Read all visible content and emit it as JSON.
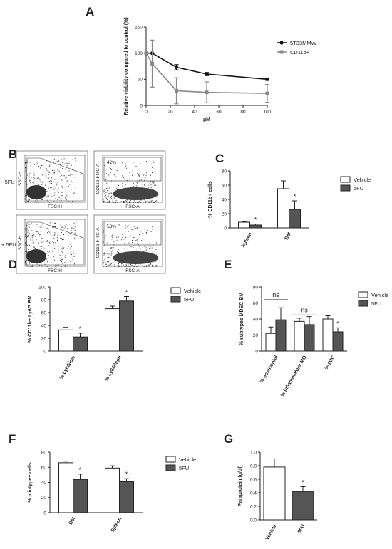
{
  "figure": {
    "background": "#ffffff",
    "axis_color": "#222222",
    "open_bar_color": "#ffffff",
    "dark_bar_color": "#555555"
  },
  "chart_data": [
    {
      "panel": "A",
      "type": "line",
      "ylabel": "Relative viability compared to control (%)",
      "xlabel": "µM",
      "xlim": [
        0,
        100
      ],
      "ylim": [
        0,
        150
      ],
      "xticks": [
        "0",
        "20",
        "40",
        "60",
        "80",
        "100"
      ],
      "yticks": [
        "0",
        "50",
        "100",
        "150"
      ],
      "legend_position": "top-right",
      "series": [
        {
          "name": "5T33MMvv",
          "color": "#111111",
          "marker": "circle",
          "x": [
            0,
            5,
            25,
            50,
            100
          ],
          "y": [
            100,
            100,
            73,
            60,
            50
          ],
          "err": [
            0,
            0,
            5,
            3,
            2
          ]
        },
        {
          "name": "CD11b+",
          "color": "#888888",
          "marker": "square",
          "x": [
            0,
            5,
            25,
            50,
            100
          ],
          "y": [
            100,
            80,
            28,
            25,
            23
          ],
          "err": [
            0,
            45,
            25,
            20,
            17
          ]
        }
      ]
    },
    {
      "panel": "C",
      "type": "bar",
      "ylabel": "% CD11b+ cells",
      "categories": [
        "Spleen",
        "BM"
      ],
      "ylim": [
        0,
        80
      ],
      "yticks": [
        "0",
        "20",
        "40",
        "60",
        "80"
      ],
      "legend_position": "top-right",
      "series": [
        {
          "name": "Vehicle",
          "values": [
            8,
            55
          ],
          "err": [
            1,
            11
          ]
        },
        {
          "name": "5FU",
          "values": [
            4,
            26
          ],
          "err": [
            1.5,
            12
          ]
        }
      ],
      "significance": [
        [
          "",
          ""
        ],
        [
          "*",
          "*"
        ]
      ]
    },
    {
      "panel": "D",
      "type": "bar",
      "ylabel": "% CD11b+ Ly6G BM",
      "categories": [
        "% Ly6Glow",
        "% Ly6Ghigh"
      ],
      "ylim": [
        0,
        100
      ],
      "yticks": [
        "0",
        "20",
        "40",
        "60",
        "80",
        "100"
      ],
      "legend_position": "top-right",
      "series": [
        {
          "name": "Vehicle",
          "values": [
            33,
            66
          ],
          "err": [
            4,
            4
          ]
        },
        {
          "name": "5FU",
          "values": [
            22,
            78
          ],
          "err": [
            6,
            7
          ]
        }
      ],
      "significance": [
        [
          "",
          ""
        ],
        [
          "*",
          "*"
        ]
      ]
    },
    {
      "panel": "E",
      "type": "bar",
      "ylabel": "% subtypes MDSC BM",
      "categories": [
        "% eosinophil",
        "% inflammatory MO",
        "% tMC"
      ],
      "ylim": [
        0,
        80
      ],
      "yticks": [
        "0",
        "20",
        "40",
        "60",
        "80"
      ],
      "legend_position": "top-right",
      "series": [
        {
          "name": "Vehicle",
          "values": [
            22,
            37,
            40
          ],
          "err": [
            8,
            4,
            4
          ]
        },
        {
          "name": "5FU",
          "values": [
            39,
            33,
            24
          ],
          "err": [
            15,
            10,
            5
          ]
        }
      ],
      "significance": [
        [
          "",
          "",
          ""
        ],
        [
          "",
          "",
          "*"
        ]
      ],
      "annotations": [
        "ns",
        "ns"
      ]
    },
    {
      "panel": "F",
      "type": "bar",
      "ylabel": "% idiotype+ cells",
      "categories": [
        "BM",
        "Spleen"
      ],
      "ylim": [
        0,
        80
      ],
      "yticks": [
        "0",
        "20",
        "40",
        "60",
        "80"
      ],
      "legend_position": "top-right",
      "series": [
        {
          "name": "Vehicle",
          "values": [
            66,
            59
          ],
          "err": [
            2,
            3
          ]
        },
        {
          "name": "5FU",
          "values": [
            44,
            41
          ],
          "err": [
            7,
            4
          ]
        }
      ],
      "significance": [
        [
          "",
          ""
        ],
        [
          "*",
          "*"
        ]
      ]
    },
    {
      "panel": "G",
      "type": "bar",
      "ylabel": "Paraprotein (g/dl)",
      "categories": [
        "Vehicle",
        "5FU"
      ],
      "ylim": [
        0,
        1.0
      ],
      "yticks": [
        "0.0",
        "0.2",
        "0.4",
        "0.6",
        "0.8",
        "1.0"
      ],
      "series": [
        {
          "name": "",
          "values": [
            0.78,
            0.42
          ],
          "err": [
            0.12,
            0.07
          ]
        }
      ],
      "significance": [
        [
          "",
          "*"
        ]
      ]
    }
  ],
  "flow": {
    "panel": "B",
    "row_labels": [
      "- 5FU",
      "+ 5FU"
    ],
    "gate_percents": [
      "42%",
      "13%"
    ],
    "xaxis_labels": [
      "FSC-H",
      "FSC-A"
    ],
    "yaxis_labels": [
      "SSC-H",
      "CD11b-FITC-A"
    ]
  }
}
